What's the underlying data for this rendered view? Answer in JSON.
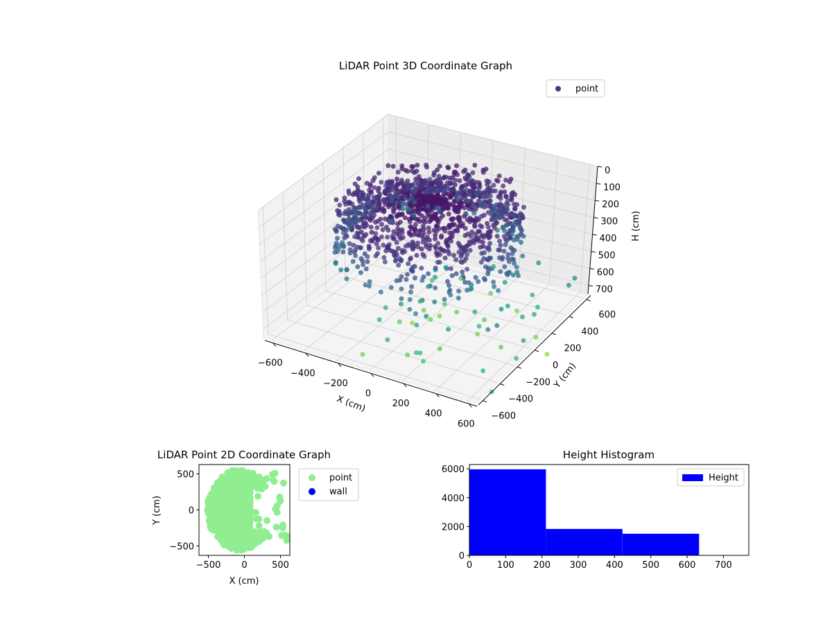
{
  "chart_data": [
    {
      "type": "scatter3d",
      "title": "LiDAR Point 3D Coordinate Graph",
      "xlabel": "X (cm)",
      "ylabel": "Y (cm)",
      "zlabel": "H (cm)",
      "xlim": [
        -650,
        650
      ],
      "ylim": [
        -650,
        650
      ],
      "zlim": [
        0,
        750
      ],
      "z_inverted": true,
      "x_ticks": [
        "−600",
        "−400",
        "−200",
        "0",
        "200",
        "400",
        "600"
      ],
      "y_ticks": [
        "−600",
        "−400",
        "−200",
        "0",
        "200",
        "400",
        "600"
      ],
      "z_ticks": [
        "0",
        "100",
        "200",
        "300",
        "400",
        "500",
        "600",
        "700"
      ],
      "legend": {
        "placement": "upper-right",
        "entries": [
          {
            "label": "point",
            "color": "#443983"
          }
        ]
      },
      "colormap": "viridis",
      "grid": true,
      "description_of_shape": "dense hemispherical shell of points, radius about 600 cm, concentrated at heights 0-400 cm, with sparse outliers down to 700 cm"
    },
    {
      "type": "scatter",
      "title": "LiDAR Point 2D Coordinate Graph",
      "xlabel": "X (cm)",
      "ylabel": "Y (cm)",
      "xlim": [
        -630,
        630
      ],
      "ylim": [
        -630,
        630
      ],
      "x_ticks": [
        "−500",
        "0",
        "500"
      ],
      "y_ticks": [
        "500",
        "0",
        "−500"
      ],
      "legend": {
        "placement": "outside-right",
        "entries": [
          {
            "label": "point",
            "color": "#90ee90"
          },
          {
            "label": "wall",
            "color": "#0000ff"
          }
        ]
      },
      "grid": false
    },
    {
      "type": "bar",
      "title": "Height Histogram",
      "xlim": [
        0,
        770
      ],
      "ylim": [
        0,
        6300
      ],
      "x_ticks": [
        "0",
        "100",
        "200",
        "300",
        "400",
        "500",
        "600",
        "700"
      ],
      "y_ticks": [
        "0",
        "2000",
        "4000",
        "6000"
      ],
      "bins": [
        {
          "start": 0,
          "end": 211,
          "count": 5970
        },
        {
          "start": 211,
          "end": 422,
          "count": 1830
        },
        {
          "start": 422,
          "end": 633,
          "count": 1500
        }
      ],
      "legend": {
        "placement": "upper-right",
        "entries": [
          {
            "label": "Height",
            "color": "#0000ff"
          }
        ]
      },
      "grid": false
    }
  ]
}
